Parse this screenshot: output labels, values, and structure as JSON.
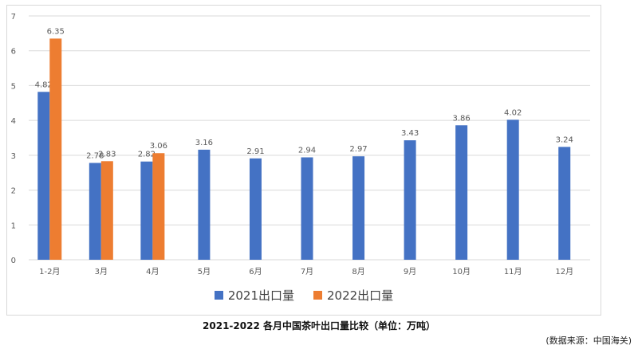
{
  "colors": {
    "series2021": "#4472c4",
    "series2022": "#ed7d31",
    "grid": "#d9d9d9",
    "text": "#595959"
  },
  "caption": "2021-2022 各月中国茶叶出口量比较（单位：万吨）",
  "source": "(数据来源：中国海关)",
  "chart_data": {
    "type": "bar",
    "categories": [
      "1-2月",
      "3月",
      "4月",
      "5月",
      "6月",
      "7月",
      "8月",
      "9月",
      "10月",
      "11月",
      "12月"
    ],
    "series": [
      {
        "name": "2021出口量",
        "values": [
          4.82,
          2.78,
          2.82,
          3.16,
          2.91,
          2.94,
          2.97,
          3.43,
          3.86,
          4.02,
          3.24
        ]
      },
      {
        "name": "2022出口量",
        "values": [
          6.35,
          2.83,
          3.06,
          null,
          null,
          null,
          null,
          null,
          null,
          null,
          null
        ]
      }
    ],
    "ylim": [
      0,
      7
    ],
    "yticks": [
      "0",
      "1",
      "2",
      "3",
      "4",
      "5",
      "6",
      "7"
    ],
    "data_labels": [
      [
        "4.82",
        "2.78",
        "2.82",
        "3.16",
        "2.91",
        "2.94",
        "2.97",
        "3.43",
        "3.86",
        "4.02",
        "3.24"
      ],
      [
        "6.35",
        "2.83",
        "3.06",
        null,
        null,
        null,
        null,
        null,
        null,
        null,
        null
      ]
    ],
    "legend": "bottom",
    "grid": true
  }
}
